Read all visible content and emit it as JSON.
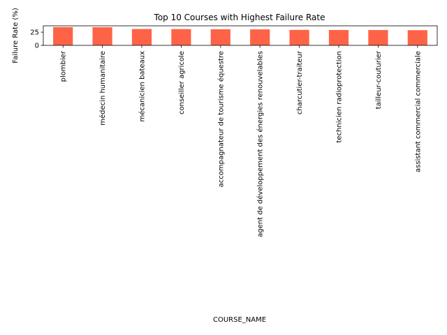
{
  "chart_data": {
    "type": "bar",
    "title": "Top 10 Courses with Highest Failure Rate",
    "xlabel": "COURSE_NAME",
    "ylabel": "Failure Rate (%)",
    "categories": [
      "plombier",
      "médecin humanitaire",
      "mécanicien bateaux",
      "conseiller agricole",
      "accompagnateur de tourisme équestre",
      "agent de développement des énergies renouvelables",
      "charcutier-traiteur",
      "technicien radioprotection",
      "tailleur-couturier",
      "assistant commercial commerciale"
    ],
    "values": [
      34.5,
      34.3,
      31.0,
      30.8,
      30.5,
      30.3,
      29.3,
      29.1,
      29.0,
      28.8
    ],
    "ylim": [
      0,
      37
    ],
    "yticks": [
      0,
      25
    ],
    "bar_color": "#ff6347",
    "grid": false,
    "legend": false
  }
}
